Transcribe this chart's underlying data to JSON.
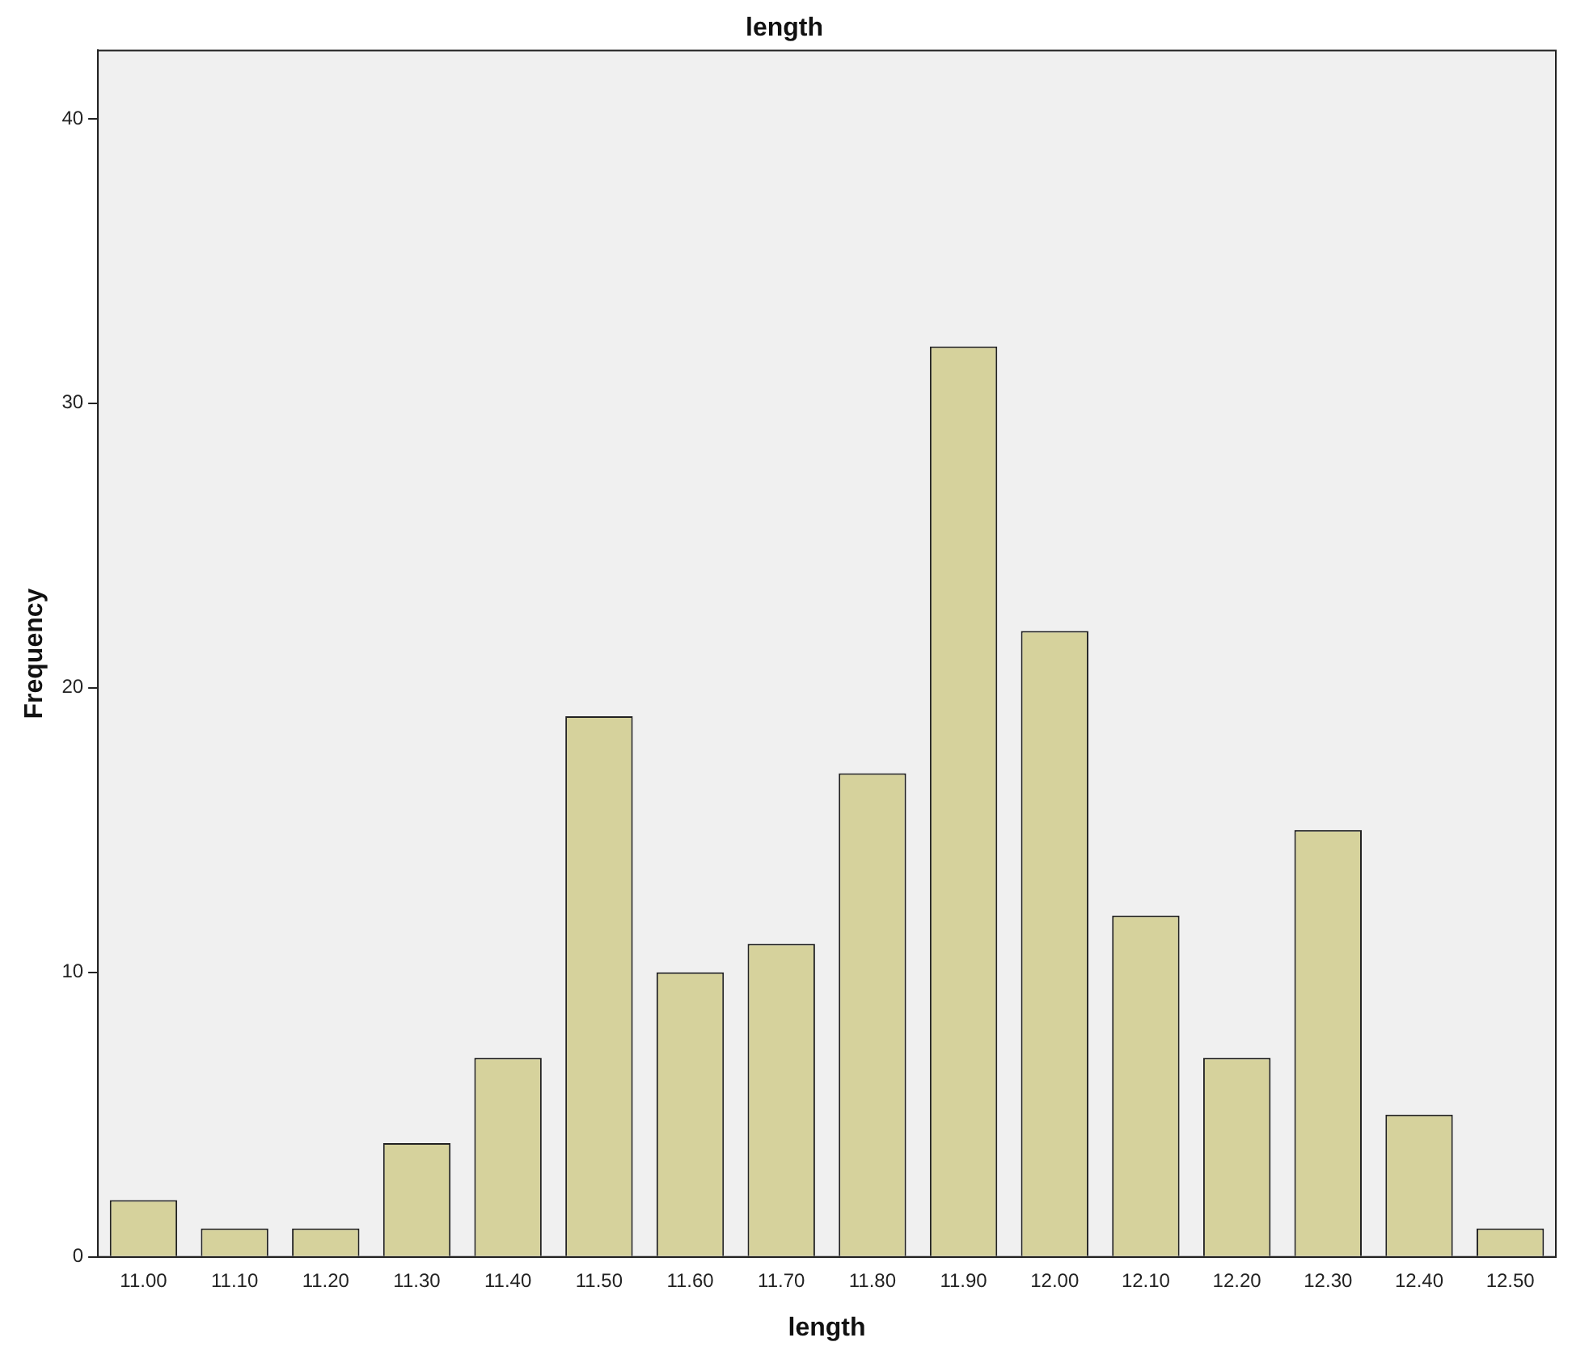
{
  "chart_data": {
    "type": "bar",
    "title": "length",
    "xlabel": "length",
    "ylabel": "Frequency",
    "categories": [
      "11.00",
      "11.10",
      "11.20",
      "11.30",
      "11.40",
      "11.50",
      "11.60",
      "11.70",
      "11.80",
      "11.90",
      "12.00",
      "12.10",
      "12.20",
      "12.30",
      "12.40",
      "12.50"
    ],
    "values": [
      2,
      1,
      1,
      4,
      7,
      19,
      10,
      11,
      17,
      32,
      22,
      12,
      7,
      15,
      5,
      1
    ],
    "color": "#d6d29c",
    "ylim": [
      0,
      42.4
    ],
    "yticks": [
      0,
      10,
      20,
      30,
      40
    ],
    "grid": false,
    "legend": false
  }
}
